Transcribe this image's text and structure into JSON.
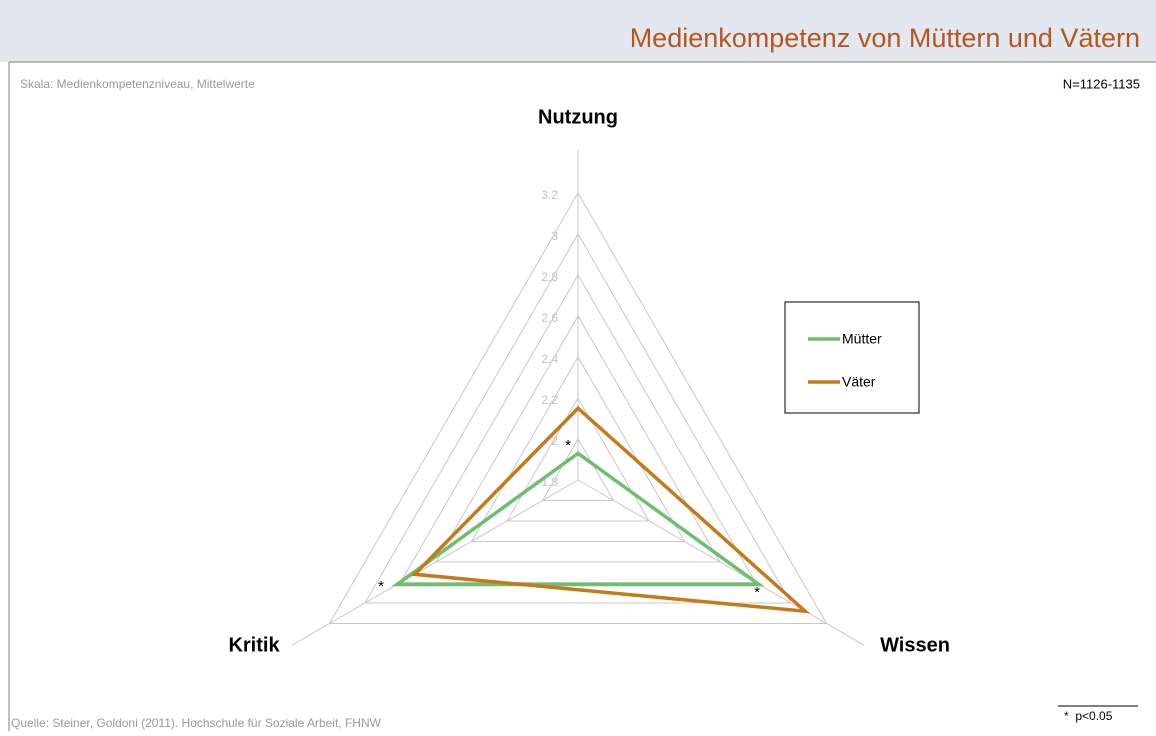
{
  "chart_data": {
    "type": "radar",
    "title": "Medienkompetenz von Müttern und Vätern",
    "subtitle": "Skala: Medienkompetenzniveau, Mittelwerte",
    "sample_note": "N=1126-1135",
    "source": "Quelle: Steiner, Goldoni (2011). Hochschule für Soziale Arbeit, FHNW",
    "footnote": "*  p<0.05",
    "categories": [
      "Nutzung",
      "Wissen",
      "Kritik"
    ],
    "significance_marks": [
      "*",
      "*",
      "*"
    ],
    "rlim": [
      1.8,
      3.2
    ],
    "rticks": [
      1.8,
      2,
      2.2,
      2.4,
      2.6,
      2.8,
      3,
      3.2
    ],
    "grid": true,
    "legend": "right",
    "series": [
      {
        "name": "Mütter",
        "color": "#6cbf6c",
        "values": [
          1.93,
          2.82,
          2.82
        ]
      },
      {
        "name": "Väter",
        "color": "#c47a1a",
        "values": [
          2.15,
          3.08,
          2.72
        ]
      }
    ]
  }
}
